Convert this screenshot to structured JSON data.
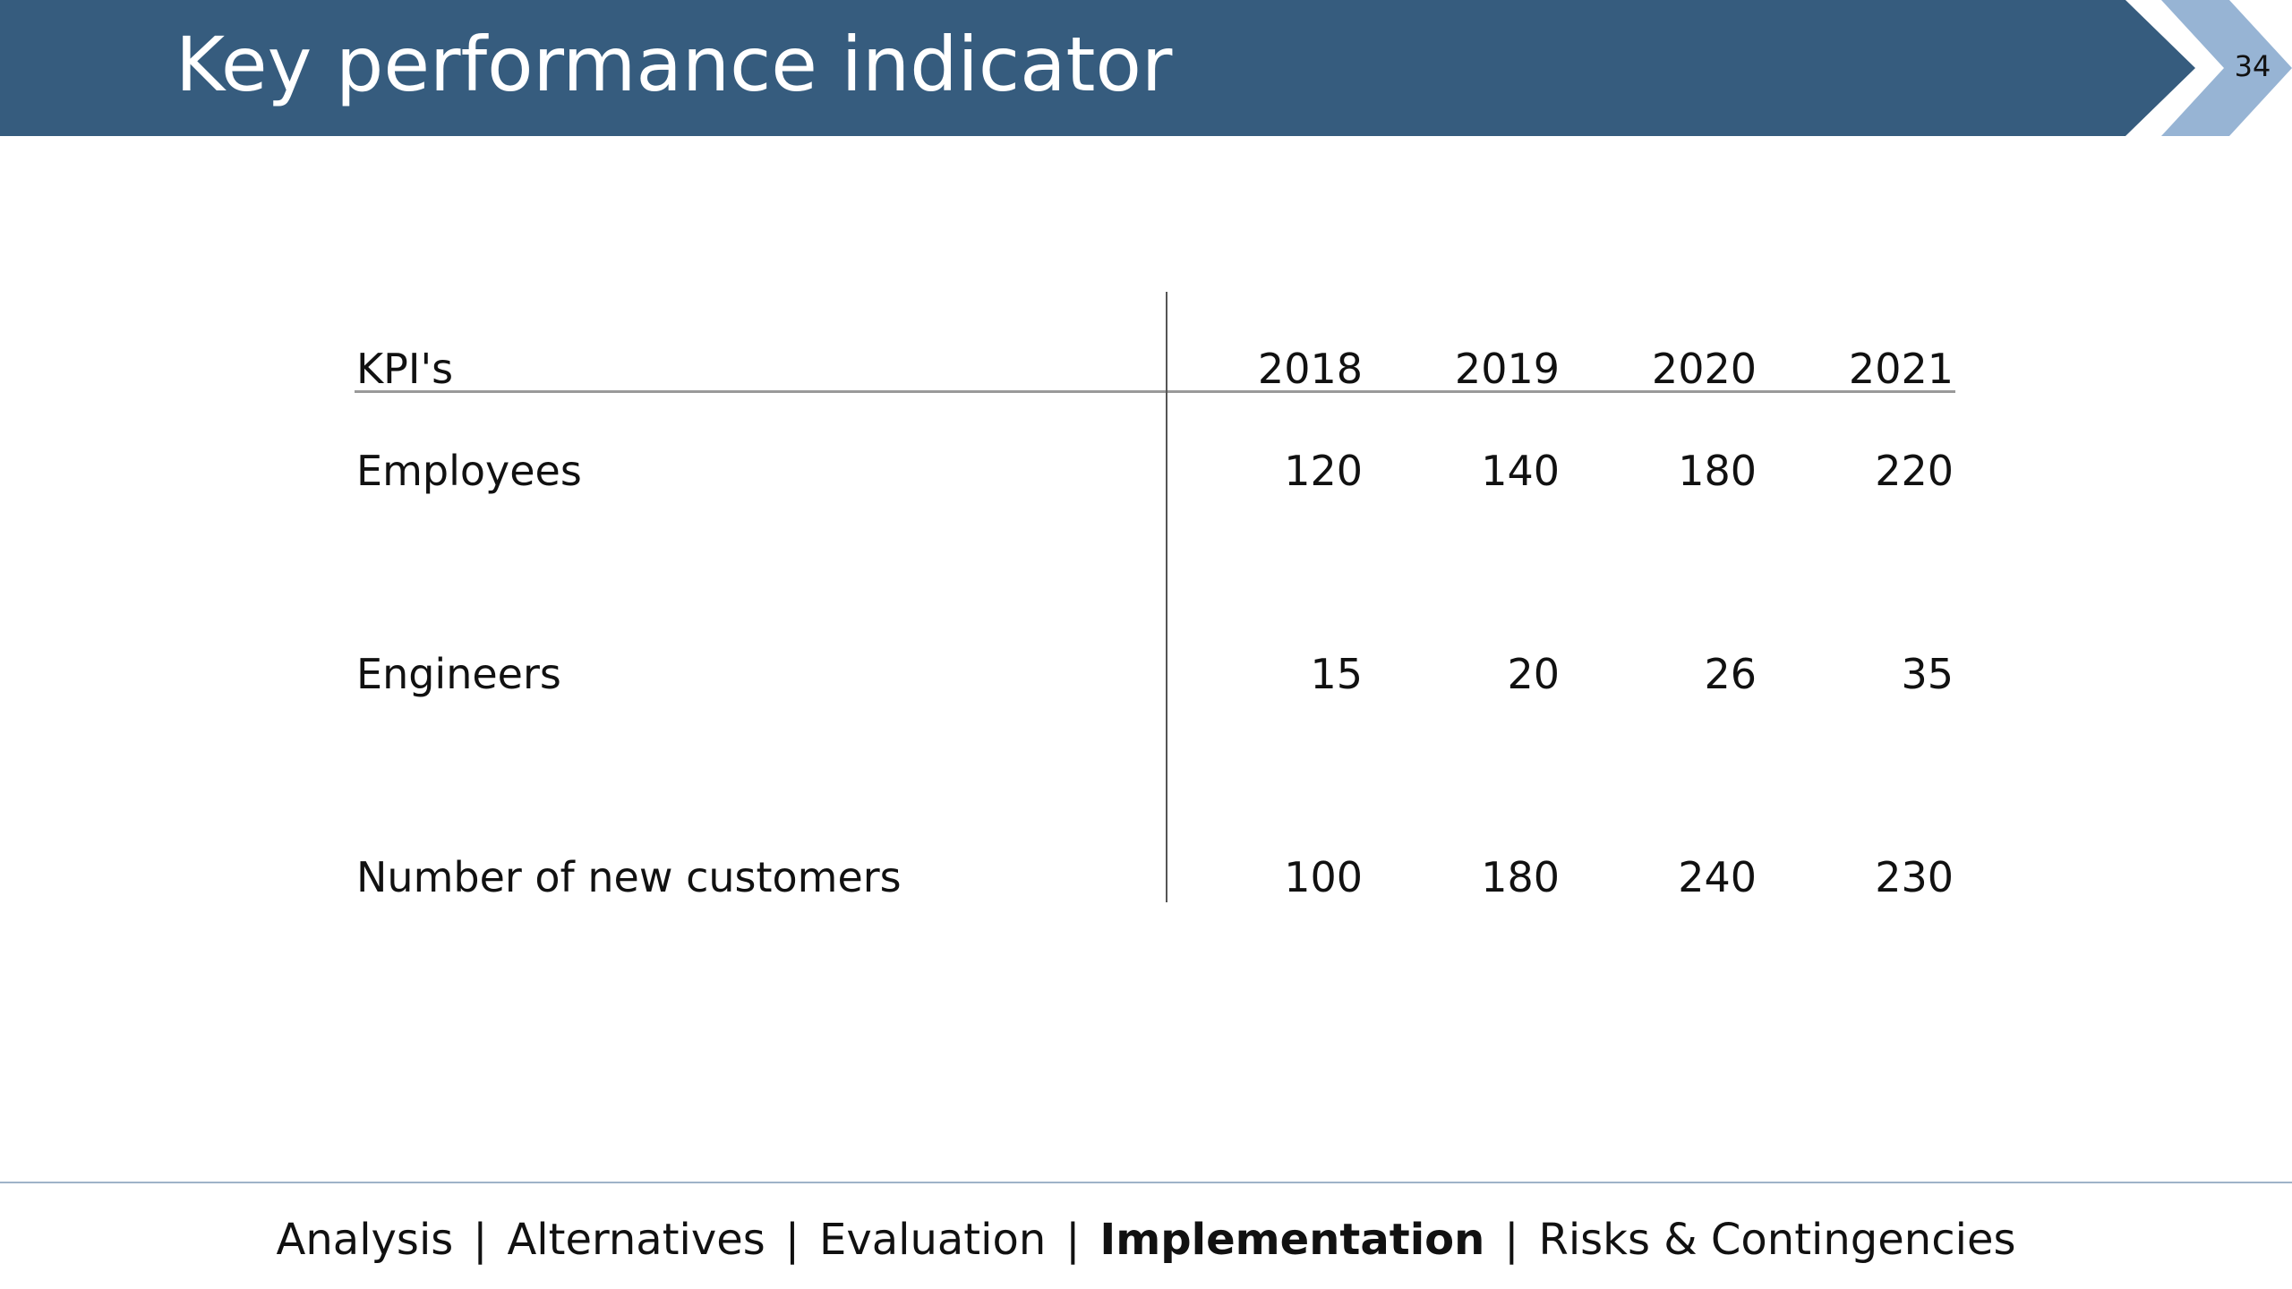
{
  "slide": {
    "title": "Key performance indicator",
    "number": "34",
    "colors": {
      "banner": "#365C7E",
      "chevron": "#97B4D4"
    }
  },
  "table": {
    "header": {
      "label": "KPI's",
      "years": [
        "2018",
        "2019",
        "2020",
        "2021"
      ]
    },
    "rows": [
      {
        "label": "Employees",
        "values": [
          "120",
          "140",
          "180",
          "220"
        ]
      },
      {
        "label": "Engineers",
        "values": [
          "15",
          "20",
          "26",
          "35"
        ]
      },
      {
        "label": "Number of new customers",
        "values": [
          "100",
          "180",
          "240",
          "230"
        ]
      }
    ]
  },
  "footer": {
    "separator": "|",
    "items": [
      "Analysis",
      "Alternatives",
      "Evaluation",
      "Implementation",
      "Risks & Contingencies"
    ],
    "active": "Implementation"
  }
}
